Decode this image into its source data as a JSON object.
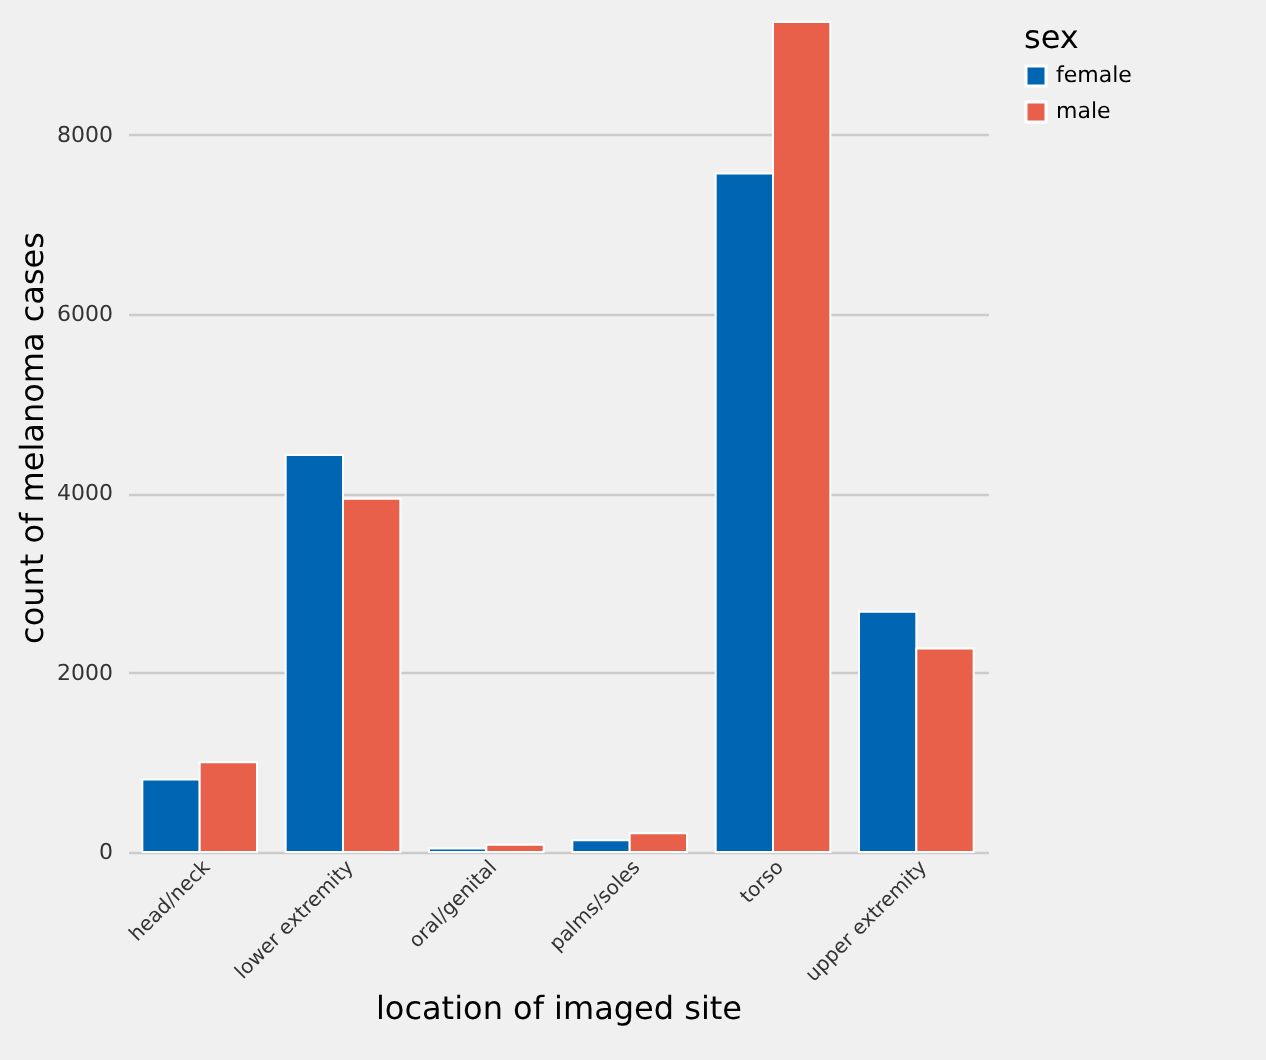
{
  "chart_data": {
    "type": "bar",
    "xlabel": "location of imaged site",
    "ylabel": "count of melanoma cases",
    "legend_title": "sex",
    "categories": [
      "head/neck",
      "lower extremity",
      "oral/genital",
      "palms/soles",
      "torso",
      "upper extremity"
    ],
    "series": [
      {
        "name": "female",
        "color": "#0066b3",
        "values": [
          810,
          4430,
          40,
          130,
          7570,
          2680
        ]
      },
      {
        "name": "male",
        "color": "#e8604a",
        "values": [
          1000,
          3940,
          80,
          210,
          9260,
          2270
        ]
      }
    ],
    "ylim": [
      0,
      9260
    ],
    "yticks": [
      0,
      2000,
      4000,
      6000,
      8000
    ],
    "grid": "y",
    "legend": "right"
  }
}
